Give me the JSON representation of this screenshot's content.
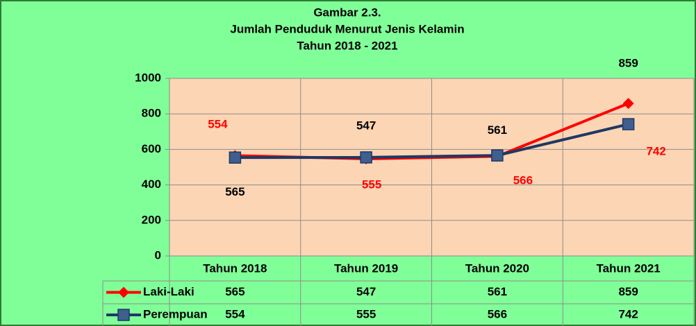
{
  "chart_data": {
    "type": "line",
    "title": [
      "Gambar 2.3.",
      "Jumlah Penduduk  Menurut  Jenis Kelamin",
      "Tahun 2018 - 2021"
    ],
    "categories": [
      "Tahun 2018",
      "Tahun 2019",
      "Tahun 2020",
      "Tahun 2021"
    ],
    "series": [
      {
        "name": "Laki-Laki",
        "color": "#ff0000",
        "marker": "diamond",
        "label_color": "#000000",
        "values": [
          565,
          547,
          561,
          859
        ]
      },
      {
        "name": "Perempuan",
        "color": "#1f3864",
        "marker": "square",
        "marker_fill": "#3f5f8f",
        "label_color": "#ff0000",
        "values": [
          554,
          555,
          566,
          742
        ]
      }
    ],
    "ylim": [
      0,
      1000
    ],
    "yticks": [
      0,
      200,
      400,
      600,
      800,
      1000
    ],
    "grid": true,
    "background": "#80ff99",
    "plot_background": "#fcd5b4",
    "data_table": true
  }
}
